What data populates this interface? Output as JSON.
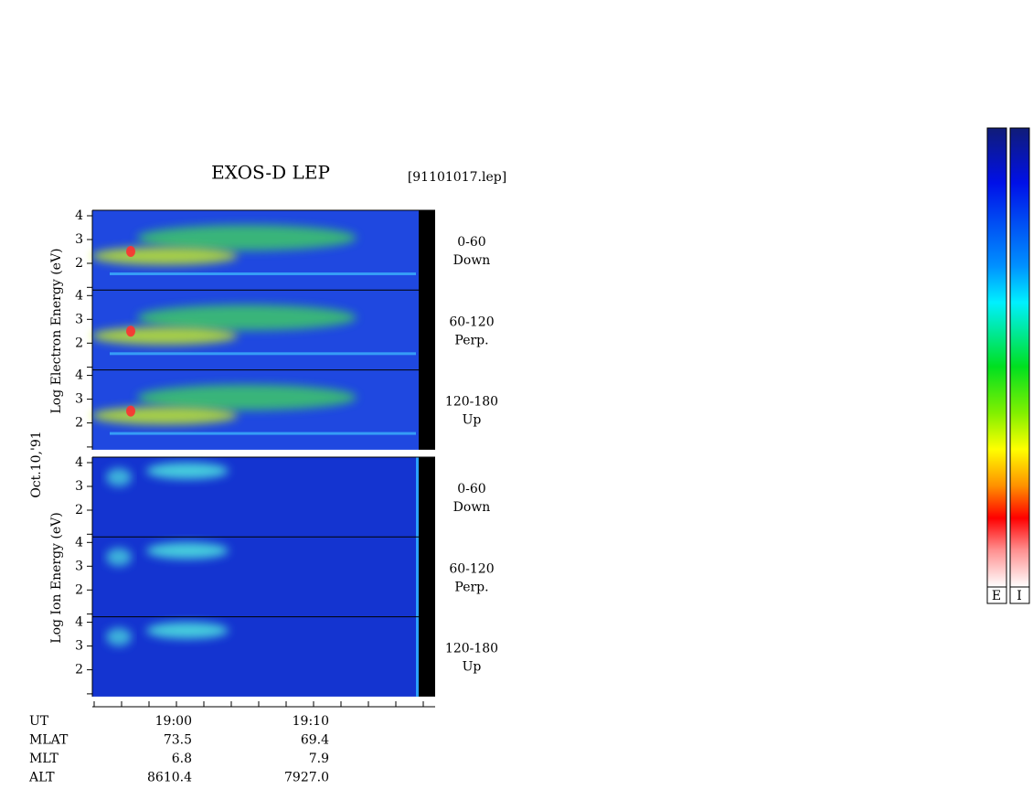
{
  "header": {
    "title": "EXOS-D LEP",
    "file": "[91101017.lep]"
  },
  "date": "Oct.10,'91",
  "electron": {
    "axis_label": "Log Electron Energy (eV)",
    "panels": [
      {
        "ticks": [
          "4",
          "3",
          "2"
        ],
        "label": [
          "0-60",
          "Down"
        ]
      },
      {
        "ticks": [
          "4",
          "3",
          "2"
        ],
        "label": [
          "60-120",
          "Perp."
        ]
      },
      {
        "ticks": [
          "4",
          "3",
          "2"
        ],
        "label": [
          "120-180",
          "Up"
        ]
      }
    ]
  },
  "ion": {
    "axis_label": "Log Ion Energy (eV)",
    "panels": [
      {
        "ticks": [
          "4",
          "3",
          "2"
        ],
        "label": [
          "0-60",
          "Down"
        ]
      },
      {
        "ticks": [
          "4",
          "3",
          "2"
        ],
        "label": [
          "60-120",
          "Perp."
        ]
      },
      {
        "ticks": [
          "4",
          "3",
          "2"
        ],
        "label": [
          "120-180",
          "Up"
        ]
      }
    ]
  },
  "ephemeris": {
    "columns": [
      "19:00",
      "19:10"
    ],
    "rows": [
      {
        "name": "UT"
      },
      {
        "name": "MLAT",
        "values": [
          "73.5",
          "69.4"
        ]
      },
      {
        "name": "MLT",
        "values": [
          "6.8",
          "7.9"
        ]
      },
      {
        "name": "ALT",
        "values": [
          "8610.4",
          "7927.0"
        ]
      }
    ]
  },
  "colorbars": {
    "labels": [
      "E",
      "I"
    ]
  }
}
